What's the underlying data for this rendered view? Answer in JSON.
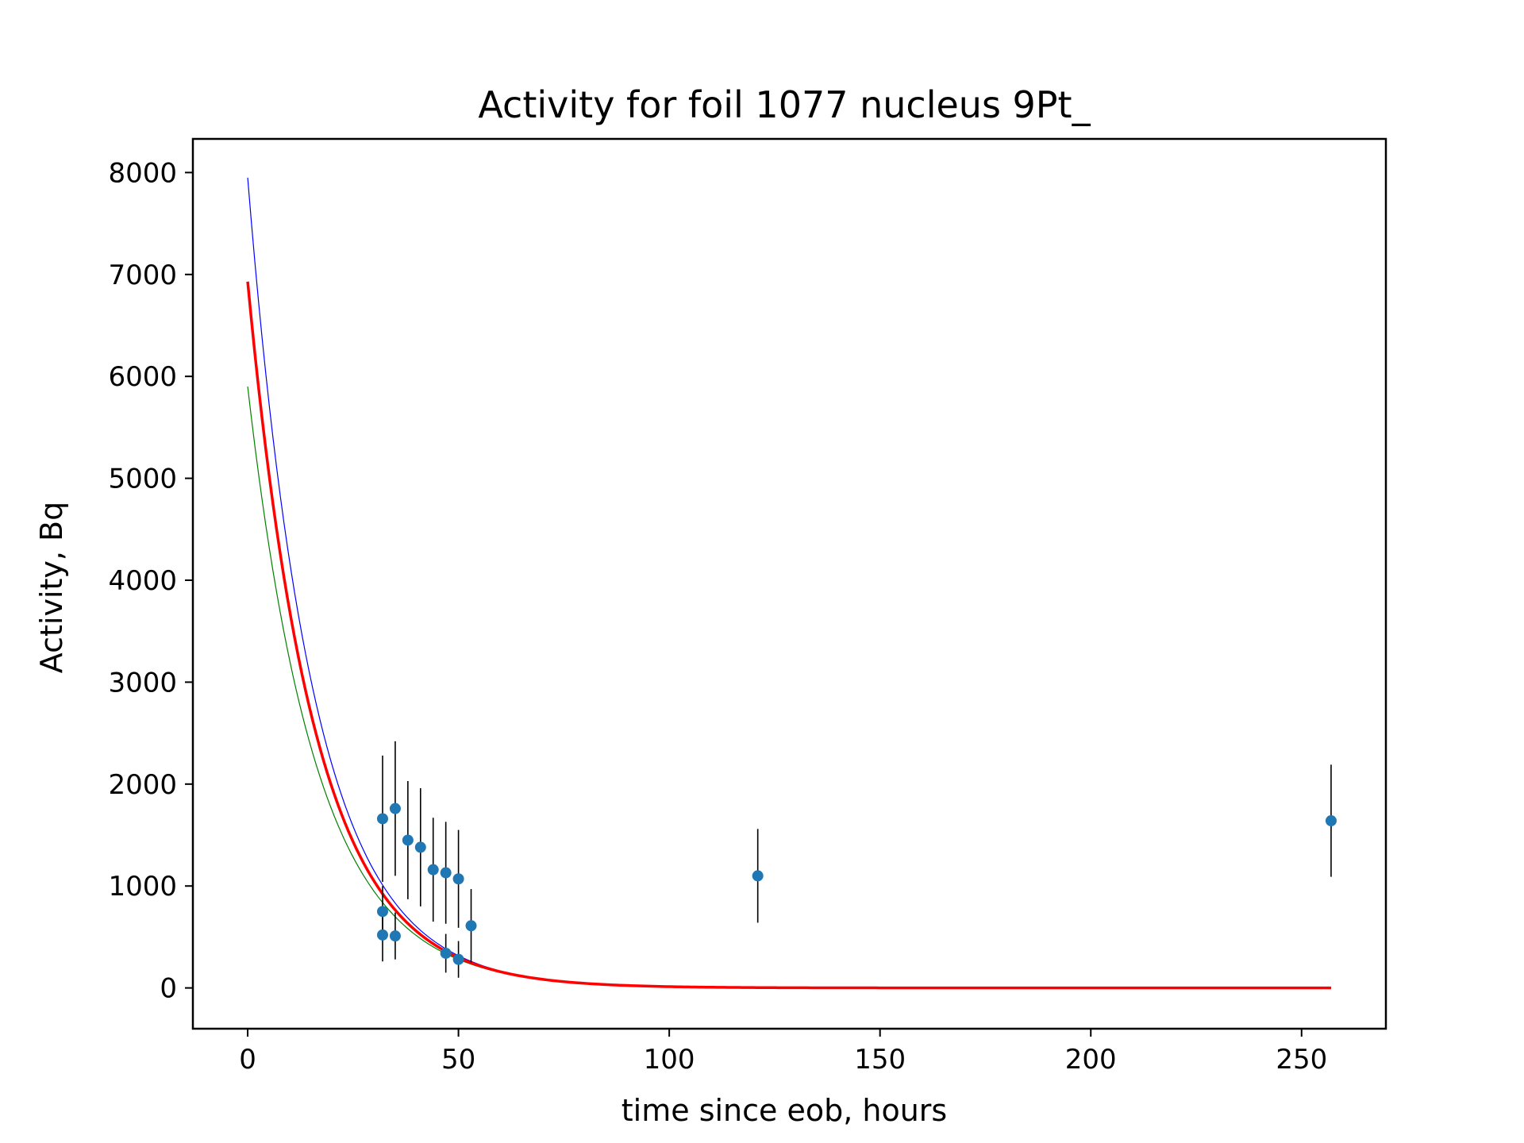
{
  "chart_data": {
    "type": "scatter",
    "title": "Activity for foil 1077 nucleus 9Pt_",
    "xlabel": "time since eob, hours",
    "ylabel": "Activity, Bq",
    "xlim": [
      -13,
      270
    ],
    "ylim": [
      -400,
      8330
    ],
    "xticks": [
      0,
      50,
      100,
      150,
      200,
      250
    ],
    "yticks": [
      0,
      1000,
      2000,
      3000,
      4000,
      5000,
      6000,
      7000,
      8000
    ],
    "grid": false,
    "legend": "none",
    "points": [
      {
        "x": 32,
        "y": 1660,
        "err": 620
      },
      {
        "x": 32,
        "y": 750,
        "err": 250
      },
      {
        "x": 32,
        "y": 520,
        "err": 260
      },
      {
        "x": 35,
        "y": 1760,
        "err": 660
      },
      {
        "x": 35,
        "y": 510,
        "err": 230
      },
      {
        "x": 38,
        "y": 1450,
        "err": 580
      },
      {
        "x": 41,
        "y": 1380,
        "err": 580
      },
      {
        "x": 44,
        "y": 1160,
        "err": 510
      },
      {
        "x": 47,
        "y": 1130,
        "err": 500
      },
      {
        "x": 47,
        "y": 340,
        "err": 190
      },
      {
        "x": 50,
        "y": 1070,
        "err": 480
      },
      {
        "x": 50,
        "y": 280,
        "err": 180
      },
      {
        "x": 53,
        "y": 610,
        "err": 360
      },
      {
        "x": 121,
        "y": 1100,
        "err": 460
      },
      {
        "x": 257,
        "y": 1640,
        "err": 550
      }
    ],
    "series": [
      {
        "type": "curve",
        "a0": 7950,
        "lambda": 0.0645,
        "x_range": [
          0,
          257
        ],
        "color": "#0000ff",
        "width": 1.2
      },
      {
        "type": "curve",
        "a0": 5900,
        "lambda": 0.061,
        "x_range": [
          0,
          257
        ],
        "color": "#008000",
        "width": 1.2
      },
      {
        "type": "curve",
        "a0": 6930,
        "lambda": 0.063,
        "x_range": [
          0,
          257
        ],
        "color": "#ff0000",
        "width": 3.5
      }
    ],
    "colors": {
      "points": "#1f77b4",
      "errorbars": "#000000"
    }
  }
}
